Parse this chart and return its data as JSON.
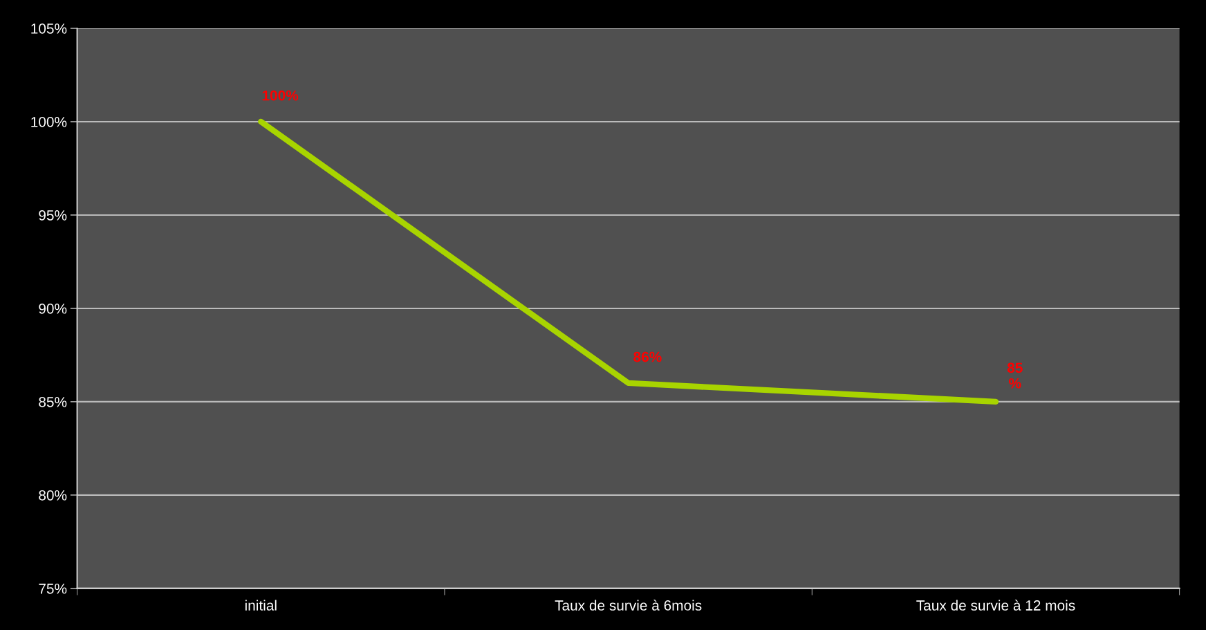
{
  "chart_data": {
    "type": "line",
    "categories": [
      "initial",
      "Taux de survie à 6mois",
      "Taux de survie à 12 mois"
    ],
    "series": [
      {
        "color": "#a8d400",
        "values": [
          100,
          86,
          85
        ],
        "value_labels": [
          "100%",
          "86%",
          "85\n%"
        ]
      }
    ],
    "ylim": [
      75,
      105
    ],
    "yticks": [
      {
        "value": 75,
        "label": "75%"
      },
      {
        "value": 80,
        "label": "80%"
      },
      {
        "value": 85,
        "label": "85%"
      },
      {
        "value": 90,
        "label": "90%"
      },
      {
        "value": 95,
        "label": "95%"
      },
      {
        "value": 100,
        "label": "100%"
      },
      {
        "value": 105,
        "label": "105%"
      }
    ],
    "grid": "y",
    "marker": "none",
    "line_style": "solid"
  }
}
